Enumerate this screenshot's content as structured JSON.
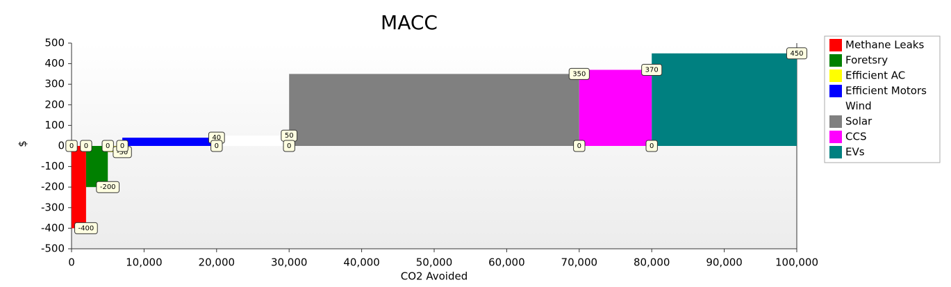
{
  "chart_data": {
    "type": "macc",
    "title": "MACC",
    "x_label": "CO2 Avoided",
    "y_label": "$",
    "xlim": [
      0,
      100000
    ],
    "ylim": [
      -500,
      500
    ],
    "xticks": [
      0,
      {
        "value": 10000,
        "label": "10,000"
      },
      {
        "value": 20000,
        "label": "20,000"
      },
      {
        "value": 30000,
        "label": "30,000"
      },
      {
        "value": 40000,
        "label": "40,000"
      },
      {
        "value": 50000,
        "label": "50,000"
      },
      {
        "value": 60000,
        "label": "60,000"
      },
      {
        "value": 70000,
        "label": "70,000"
      },
      {
        "value": 80000,
        "label": "80,000"
      },
      {
        "value": 90000,
        "label": "90,000"
      },
      {
        "value": 100000,
        "label": "100,000"
      }
    ],
    "yticks": [
      -500,
      -400,
      -300,
      -200,
      -100,
      0,
      100,
      200,
      300,
      400,
      500
    ],
    "series": [
      {
        "name": "Methane Leaks",
        "color": "#ff0000",
        "x": [
          0,
          2000
        ],
        "values": [
          0,
          -400
        ]
      },
      {
        "name": "Foretsry",
        "color": "#008000",
        "x": [
          2000,
          5000
        ],
        "values": [
          0,
          -200
        ]
      },
      {
        "name": "Efficient AC",
        "color": "#ffff00",
        "x": [
          5000,
          7000
        ],
        "values": [
          0,
          -30
        ]
      },
      {
        "name": "Efficient Motors",
        "color": "#0000ff",
        "x": [
          7000,
          20000
        ],
        "values": [
          0,
          40
        ]
      },
      {
        "name": "Wind",
        "color": "#ffffff",
        "x": [
          20000,
          30000
        ],
        "values": [
          0,
          50
        ]
      },
      {
        "name": "Solar",
        "color": "#808080",
        "x": [
          30000,
          70000
        ],
        "values": [
          0,
          350
        ]
      },
      {
        "name": "CCS",
        "color": "#ff00ff",
        "x": [
          70000,
          80000
        ],
        "values": [
          0,
          370
        ]
      },
      {
        "name": "EVs",
        "color": "#008080",
        "x": [
          80000,
          100000
        ],
        "values": [
          0,
          450
        ]
      }
    ]
  }
}
